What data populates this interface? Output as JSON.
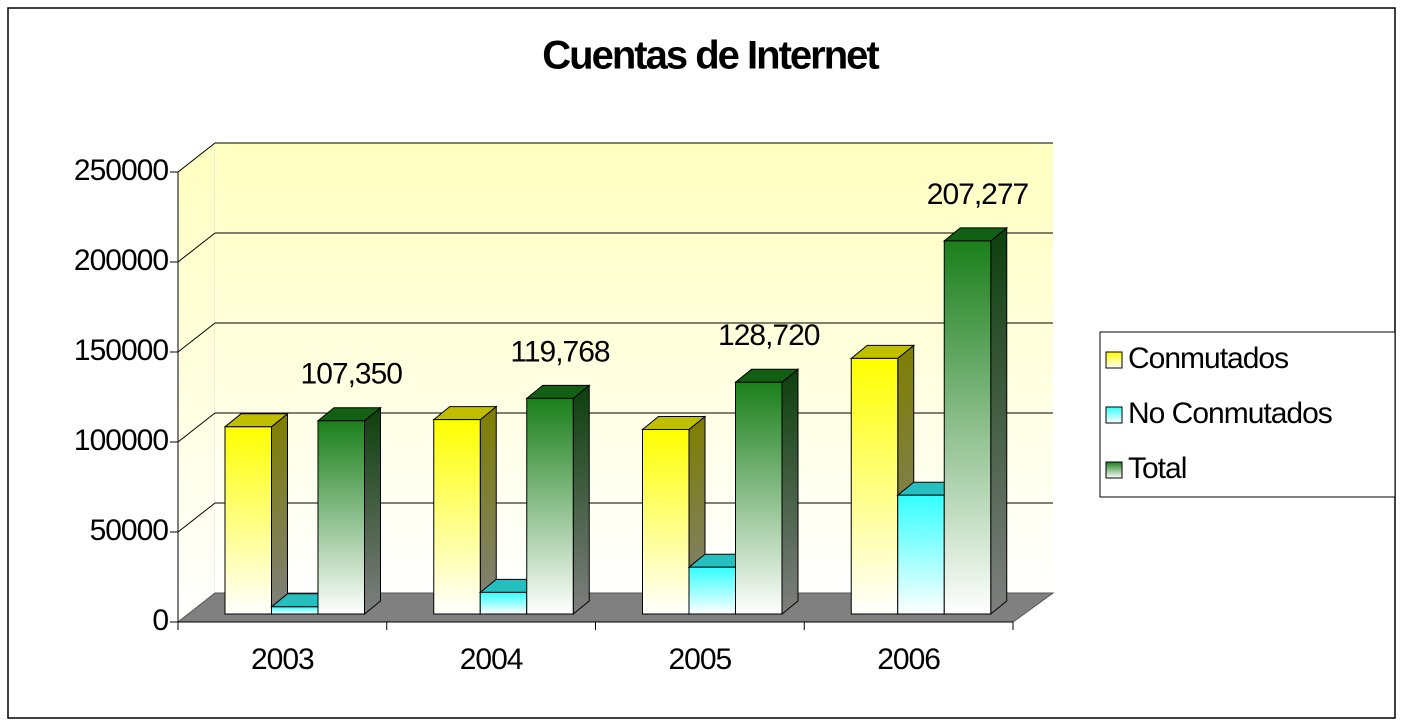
{
  "chart_data": {
    "type": "bar3d",
    "title": "Cuentas de Internet",
    "categories": [
      "2003",
      "2004",
      "2005",
      "2006"
    ],
    "series": [
      {
        "name": "Conmutados",
        "color": "#ffff00",
        "values": [
          104000,
          108000,
          102500,
          142000
        ]
      },
      {
        "name": "No Conmutados",
        "color": "#33ffff",
        "values": [
          4000,
          12000,
          26000,
          66000
        ]
      },
      {
        "name": "Total",
        "color": "#1a7f1a",
        "values": [
          107350,
          119768,
          128720,
          207277
        ],
        "value_labels": [
          "107,350",
          "119,768",
          "128,720",
          "207,277"
        ]
      }
    ],
    "ylim": [
      0,
      250000
    ],
    "yticks": [
      0,
      50000,
      100000,
      150000,
      200000,
      250000
    ],
    "grid": true,
    "legend": "right"
  }
}
